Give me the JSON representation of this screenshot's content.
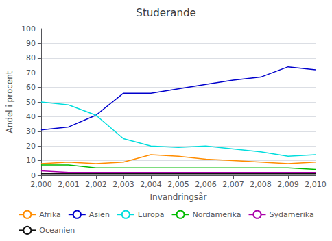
{
  "chart_data": {
    "type": "line",
    "title": "Studerande",
    "xlabel": "Invandringsår",
    "ylabel": "Andel i procent",
    "x": [
      2000,
      2001,
      2002,
      2003,
      2004,
      2005,
      2006,
      2007,
      2008,
      2009,
      2010
    ],
    "series": [
      {
        "name": "Afrika",
        "color": "#FF8C00",
        "values": [
          8,
          9,
          8,
          9,
          14,
          13,
          11,
          10,
          9,
          8,
          9
        ]
      },
      {
        "name": "Asien",
        "color": "#0000CC",
        "values": [
          31,
          33,
          41,
          56,
          56,
          59,
          62,
          65,
          67,
          74,
          72
        ]
      },
      {
        "name": "Europa",
        "color": "#00DDDD",
        "values": [
          50,
          48,
          41,
          25,
          20,
          19,
          20,
          18,
          16,
          13,
          14
        ]
      },
      {
        "name": "Nordamerika",
        "color": "#00BB00",
        "values": [
          7,
          7,
          5,
          5,
          5,
          5,
          5,
          5,
          5,
          5,
          4
        ]
      },
      {
        "name": "Sydamerika",
        "color": "#AA00AA",
        "values": [
          3,
          2,
          2,
          2,
          2,
          2,
          2,
          2,
          2,
          2,
          2
        ]
      },
      {
        "name": "Oceanien",
        "color": "#111111",
        "values": [
          1,
          1,
          1,
          1,
          1,
          1,
          1,
          1,
          1,
          1,
          1
        ]
      }
    ],
    "xlim": [
      2000,
      2010
    ],
    "xticks": [
      2000,
      2001,
      2002,
      2003,
      2004,
      2005,
      2006,
      2007,
      2008,
      2009,
      2010
    ],
    "ylim": [
      0,
      100
    ],
    "yticks": [
      0,
      10,
      20,
      30,
      40,
      50,
      60,
      70,
      80,
      90,
      100
    ],
    "grid": true,
    "legend": "bottom"
  }
}
